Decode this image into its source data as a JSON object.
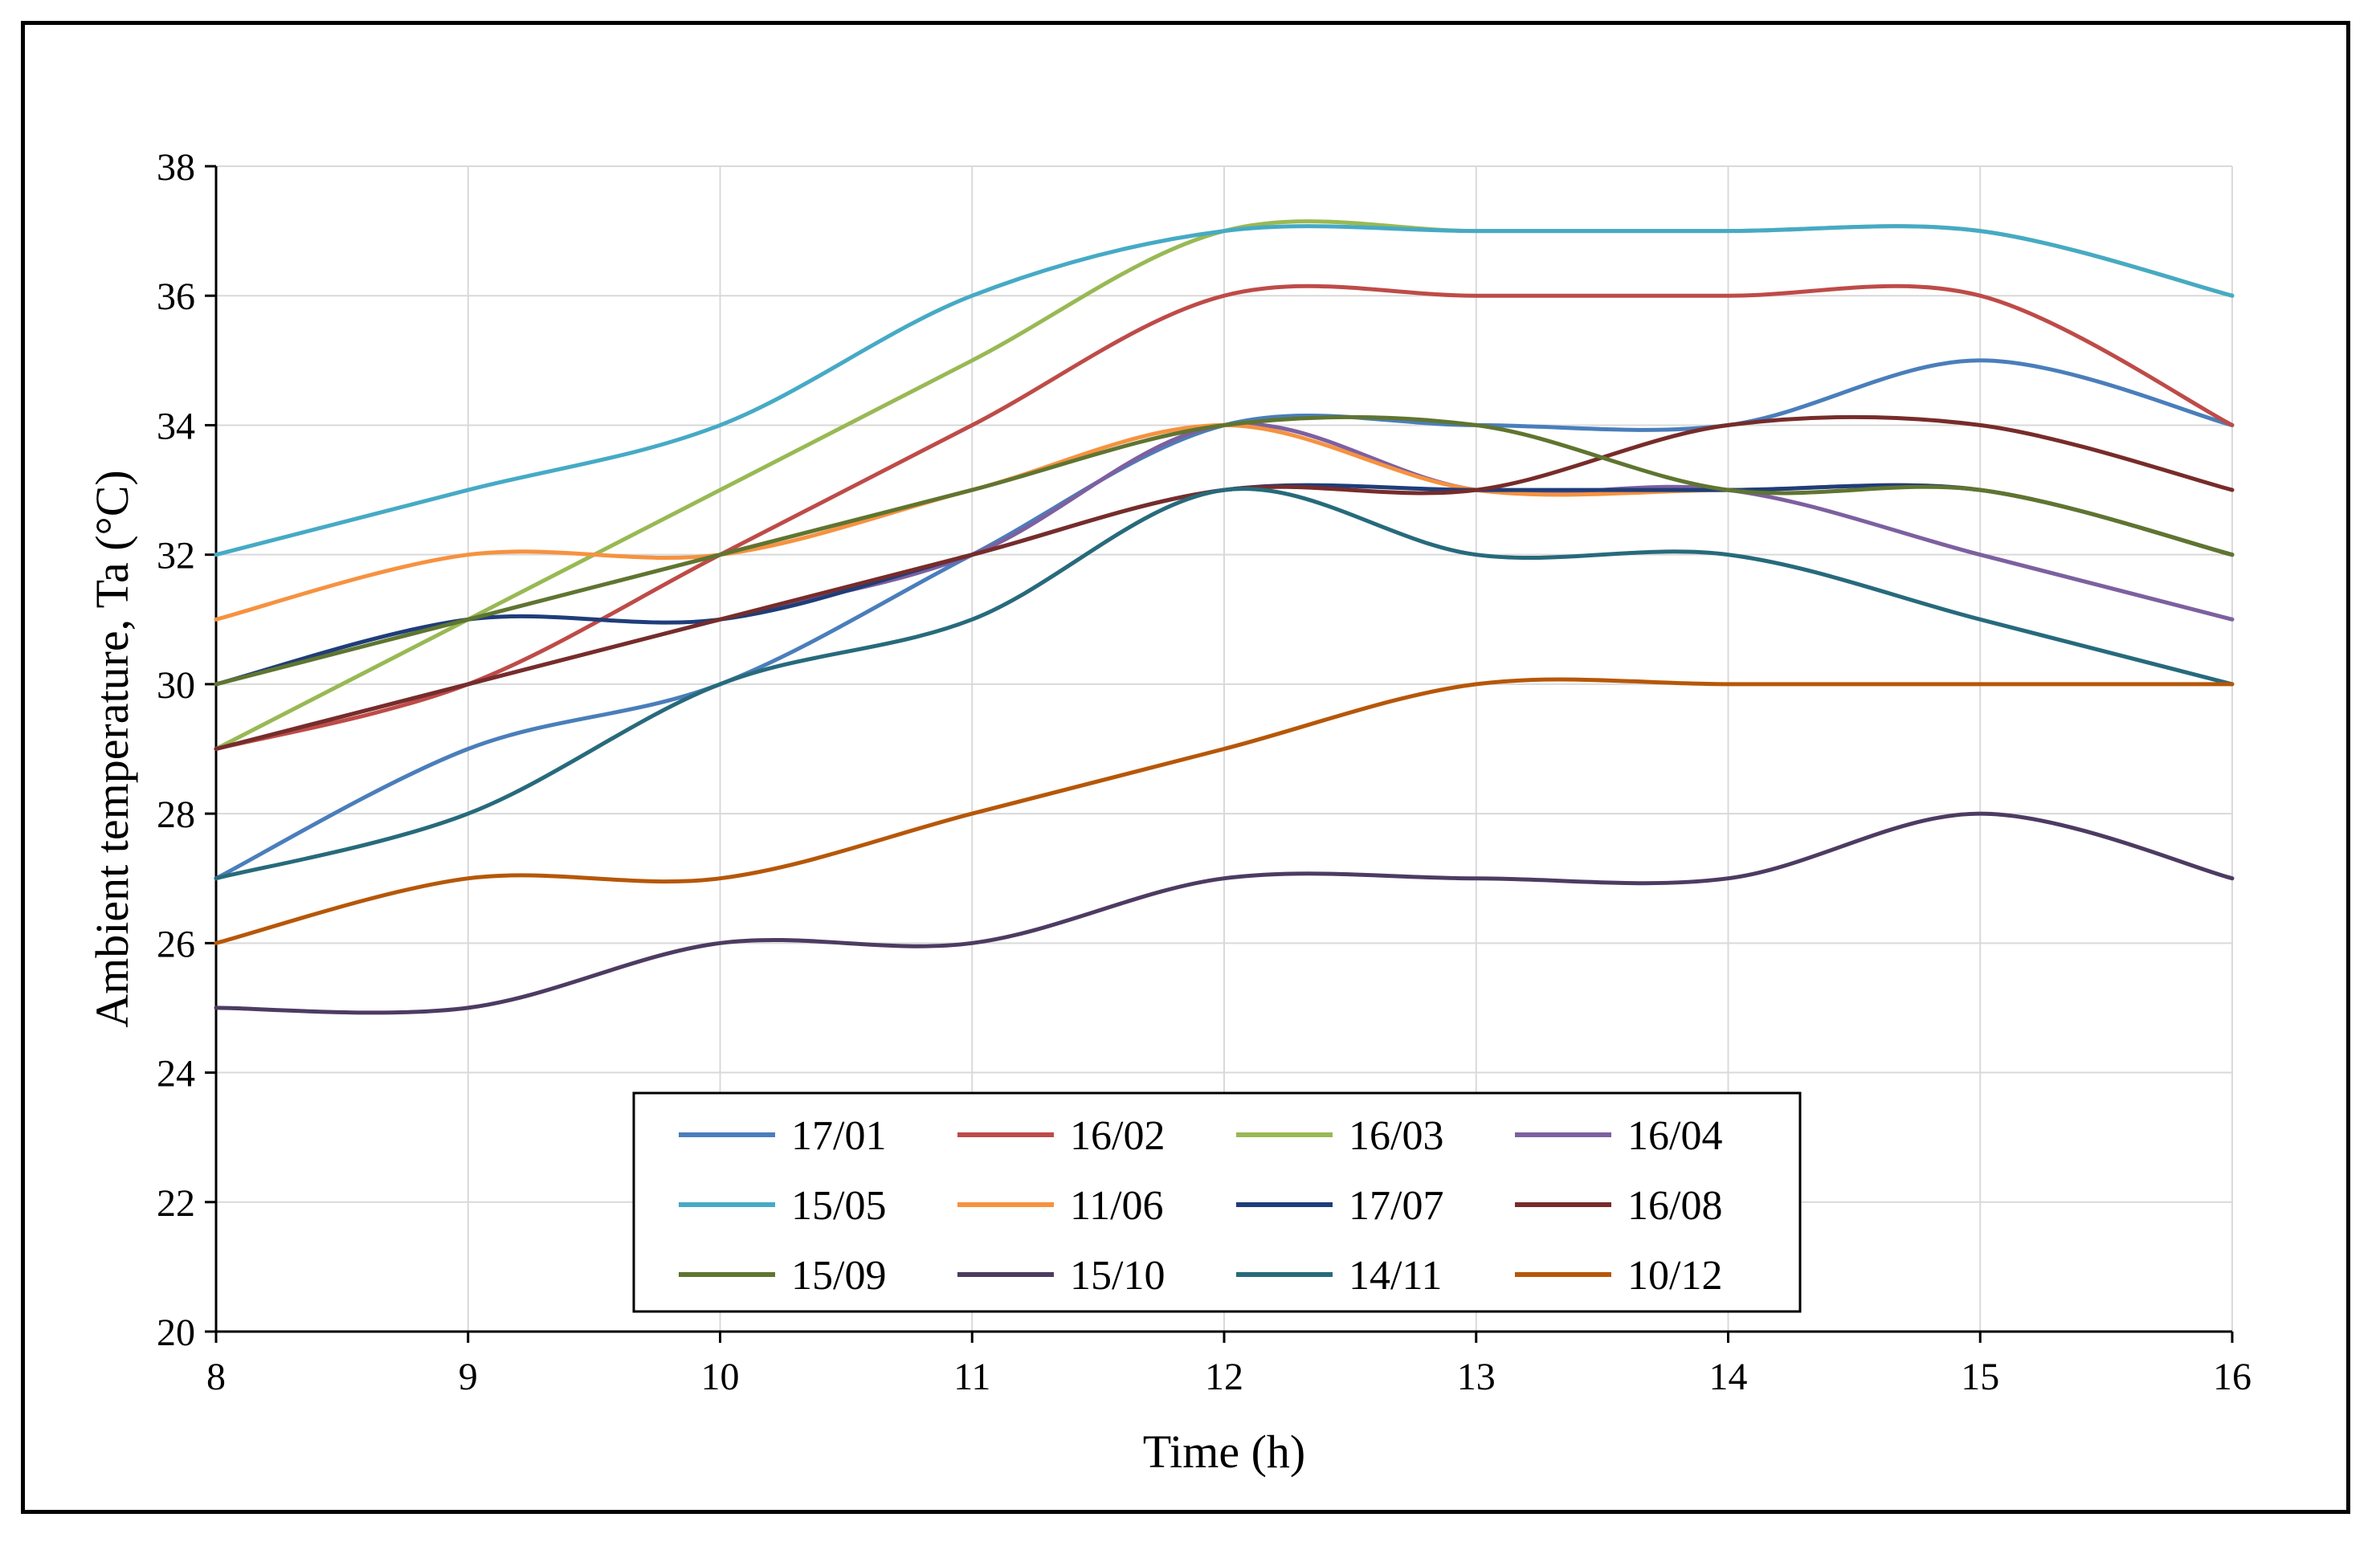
{
  "chart_data": {
    "type": "line",
    "title": "",
    "xlabel": "Time (h)",
    "ylabel": "Ambient temperature, Ta (°C)",
    "xlim": [
      8,
      16
    ],
    "ylim": [
      20,
      38
    ],
    "x_ticks": [
      "8",
      "9",
      "10",
      "11",
      "12",
      "13",
      "14",
      "15",
      "16"
    ],
    "y_ticks": [
      "20",
      "22",
      "24",
      "26",
      "28",
      "30",
      "32",
      "34",
      "36",
      "38"
    ],
    "x": [
      8,
      9,
      10,
      11,
      12,
      13,
      14,
      15,
      16
    ],
    "grid": true,
    "legend_position": "bottom-center",
    "series": [
      {
        "name": "17/01",
        "color": "#4A7EBB",
        "values": [
          27,
          29,
          30,
          32,
          34,
          34,
          34,
          35,
          34
        ]
      },
      {
        "name": "16/02",
        "color": "#BE4B48",
        "values": [
          29,
          30,
          32,
          34,
          36,
          36,
          36,
          36,
          34
        ]
      },
      {
        "name": "16/03",
        "color": "#98B954",
        "values": [
          29,
          31,
          33,
          35,
          37,
          37,
          37,
          37,
          36
        ]
      },
      {
        "name": "16/04",
        "color": "#7D60A0",
        "values": [
          29,
          30,
          31,
          32,
          34,
          33,
          33,
          32,
          31
        ]
      },
      {
        "name": "15/05",
        "color": "#46AAC5",
        "values": [
          32,
          33,
          34,
          36,
          37,
          37,
          37,
          37,
          36
        ]
      },
      {
        "name": "11/06",
        "color": "#F69240",
        "values": [
          31,
          32,
          32,
          33,
          34,
          33,
          33,
          33,
          32
        ]
      },
      {
        "name": "17/07",
        "color": "#1F3D7A",
        "values": [
          30,
          31,
          31,
          32,
          33,
          33,
          33,
          33,
          32
        ]
      },
      {
        "name": "16/08",
        "color": "#772C2A",
        "values": [
          29,
          30,
          31,
          32,
          33,
          33,
          34,
          34,
          33
        ]
      },
      {
        "name": "15/09",
        "color": "#5F7530",
        "values": [
          30,
          31,
          32,
          33,
          34,
          34,
          33,
          33,
          32
        ]
      },
      {
        "name": "15/10",
        "color": "#4D3B62",
        "values": [
          25,
          25,
          26,
          26,
          27,
          27,
          27,
          28,
          27
        ]
      },
      {
        "name": "14/11",
        "color": "#276A7C",
        "values": [
          27,
          28,
          30,
          31,
          33,
          32,
          32,
          31,
          30
        ]
      },
      {
        "name": "10/12",
        "color": "#B65708",
        "values": [
          26,
          27,
          27,
          28,
          29,
          30,
          30,
          30,
          30
        ]
      }
    ]
  }
}
